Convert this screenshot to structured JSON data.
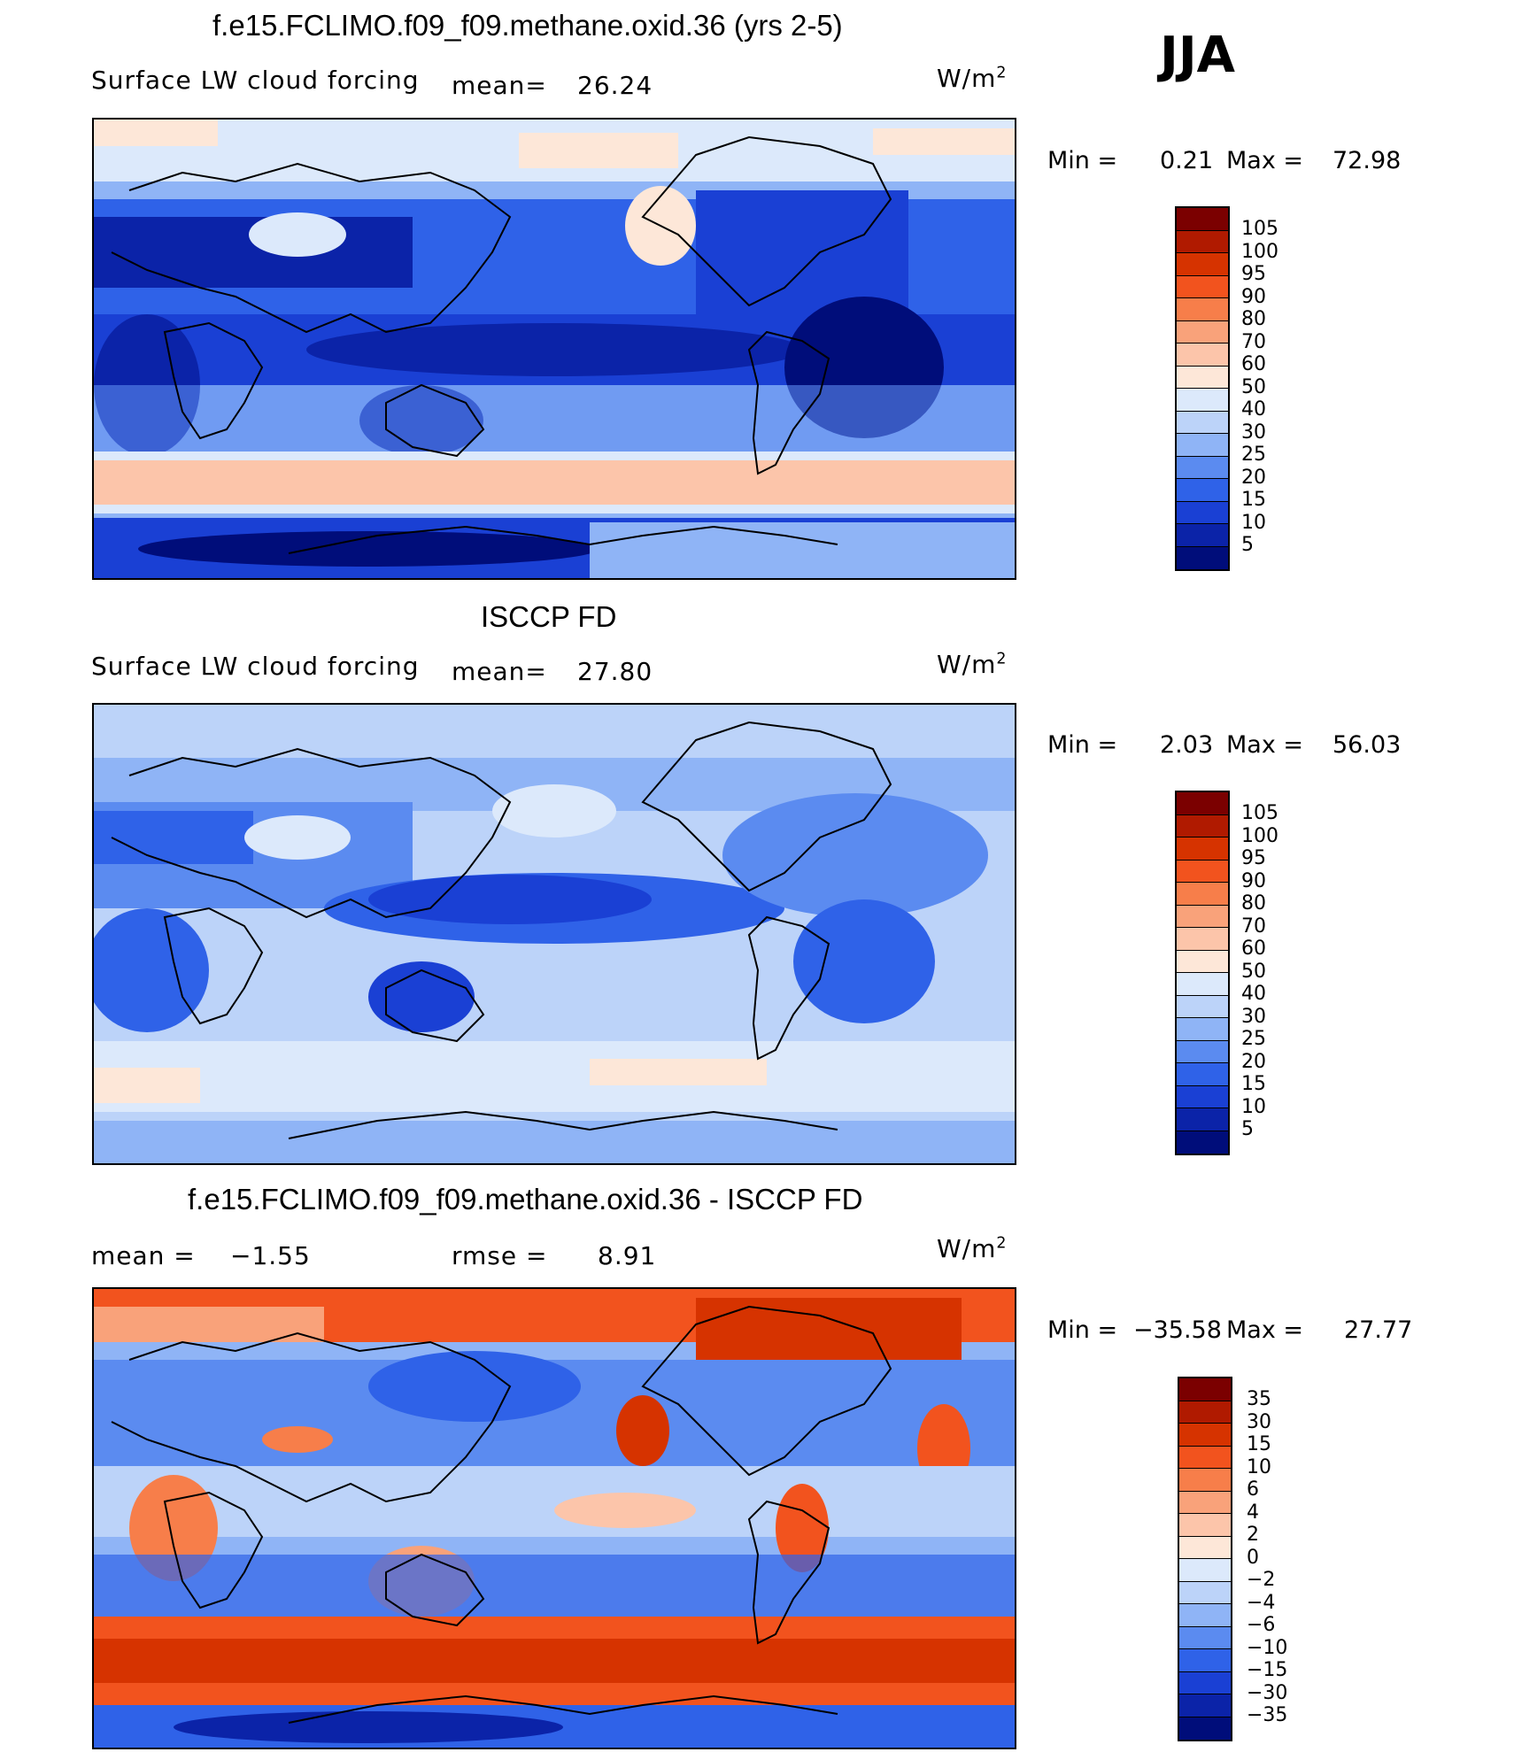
{
  "season": "JJA",
  "panels": [
    {
      "title": "f.e15.FCLIMO.f09_f09.methane.oxid.36 (yrs 2-5)",
      "variable": "Surface LW cloud forcing",
      "mean_label": "mean=",
      "mean_value": "26.24",
      "units": "W/m",
      "units_sup": "2",
      "min_label": "Min =",
      "min_value": "0.21",
      "max_label": "Max =",
      "max_value": "72.98",
      "colorbar_labels": [
        "105",
        "100",
        "95",
        "90",
        "80",
        "70",
        "60",
        "50",
        "40",
        "30",
        "25",
        "20",
        "15",
        "10",
        "5"
      ]
    },
    {
      "title": "ISCCP FD",
      "variable": "Surface LW cloud forcing",
      "mean_label": "mean=",
      "mean_value": "27.80",
      "units": "W/m",
      "units_sup": "2",
      "min_label": "Min =",
      "min_value": "2.03",
      "max_label": "Max =",
      "max_value": "56.03",
      "colorbar_labels": [
        "105",
        "100",
        "95",
        "90",
        "80",
        "70",
        "60",
        "50",
        "40",
        "30",
        "25",
        "20",
        "15",
        "10",
        "5"
      ]
    },
    {
      "title": "f.e15.FCLIMO.f09_f09.methane.oxid.36 - ISCCP FD",
      "mean_label": "mean =",
      "mean_value": "−1.55",
      "rmse_label": "rmse =",
      "rmse_value": "8.91",
      "units": "W/m",
      "units_sup": "2",
      "min_label": "Min =",
      "min_value": "−35.58",
      "max_label": "Max =",
      "max_value": "27.77",
      "colorbar_labels": [
        "35",
        "30",
        "15",
        "10",
        "6",
        "4",
        "2",
        "0",
        "−2",
        "−4",
        "−6",
        "−10",
        "−15",
        "−30",
        "−35"
      ]
    }
  ],
  "colors": {
    "abs_scale": [
      "#7b0000",
      "#b01a00",
      "#d63300",
      "#f2531e",
      "#f77e4a",
      "#f9a27a",
      "#fcc5aa",
      "#fde7d8",
      "#dce9fb",
      "#bcd3f9",
      "#8fb4f6",
      "#5b8bf0",
      "#2f62e8",
      "#1a40d4",
      "#0b23a8",
      "#000d7a"
    ],
    "diff_scale": [
      "#7b0000",
      "#b01a00",
      "#d63300",
      "#f2531e",
      "#f77e4a",
      "#f9a27a",
      "#fcc5aa",
      "#fde7d8",
      "#dce9fb",
      "#bcd3f9",
      "#8fb4f6",
      "#5b8bf0",
      "#2f62e8",
      "#1a40d4",
      "#0b23a8",
      "#000d7a"
    ]
  }
}
